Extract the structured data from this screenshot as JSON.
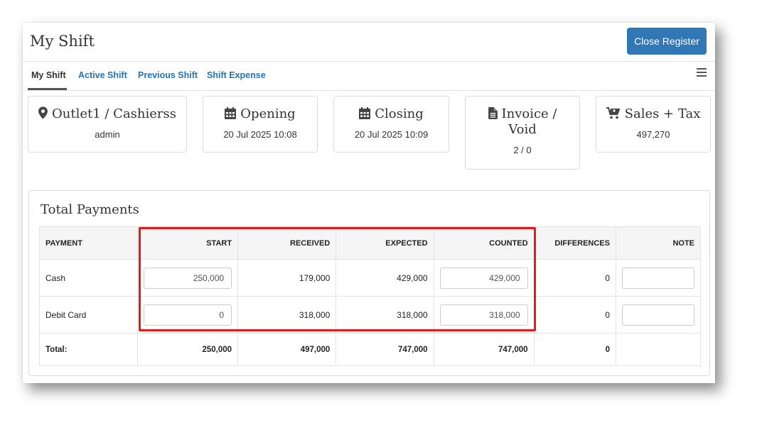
{
  "header": {
    "title": "My Shift",
    "close_button": "Close Register"
  },
  "tabs": [
    {
      "label": "My Shift",
      "active": true
    },
    {
      "label": "Active Shift",
      "active": false
    },
    {
      "label": "Previous Shift",
      "active": false
    },
    {
      "label": "Shift Expense",
      "active": false
    }
  ],
  "cards": [
    {
      "icon": "map-marker-icon",
      "title": "Outlet1 / Cashierss",
      "value": "admin"
    },
    {
      "icon": "calendar-icon",
      "title": "Opening",
      "value": "20 Jul 2025 10:08"
    },
    {
      "icon": "calendar-icon",
      "title": "Closing",
      "value": "20 Jul 2025 10:09"
    },
    {
      "icon": "document-icon",
      "title_line1": "Invoice /",
      "title_line2": "Void",
      "value": "2 / 0"
    },
    {
      "icon": "cart-icon",
      "title": "Sales + Tax",
      "value": "497,270"
    }
  ],
  "payments": {
    "title": "Total Payments",
    "columns": [
      "PAYMENT",
      "START",
      "RECEIVED",
      "EXPECTED",
      "COUNTED",
      "DIFFERENCES",
      "NOTE"
    ],
    "rows": [
      {
        "payment": "Cash",
        "start": "250,000",
        "received": "179,000",
        "expected": "429,000",
        "counted": "429,000",
        "difference": "0",
        "note": ""
      },
      {
        "payment": "Debit Card",
        "start": "0",
        "received": "318,000",
        "expected": "318,000",
        "counted": "318,000",
        "difference": "0",
        "note": ""
      }
    ],
    "total": {
      "label": "Total:",
      "start": "250,000",
      "received": "497,000",
      "expected": "747,000",
      "counted": "747,000",
      "difference": "0"
    }
  },
  "colors": {
    "primary": "#3277b5",
    "link": "#1f74b8",
    "highlight": "#e41b1b"
  }
}
